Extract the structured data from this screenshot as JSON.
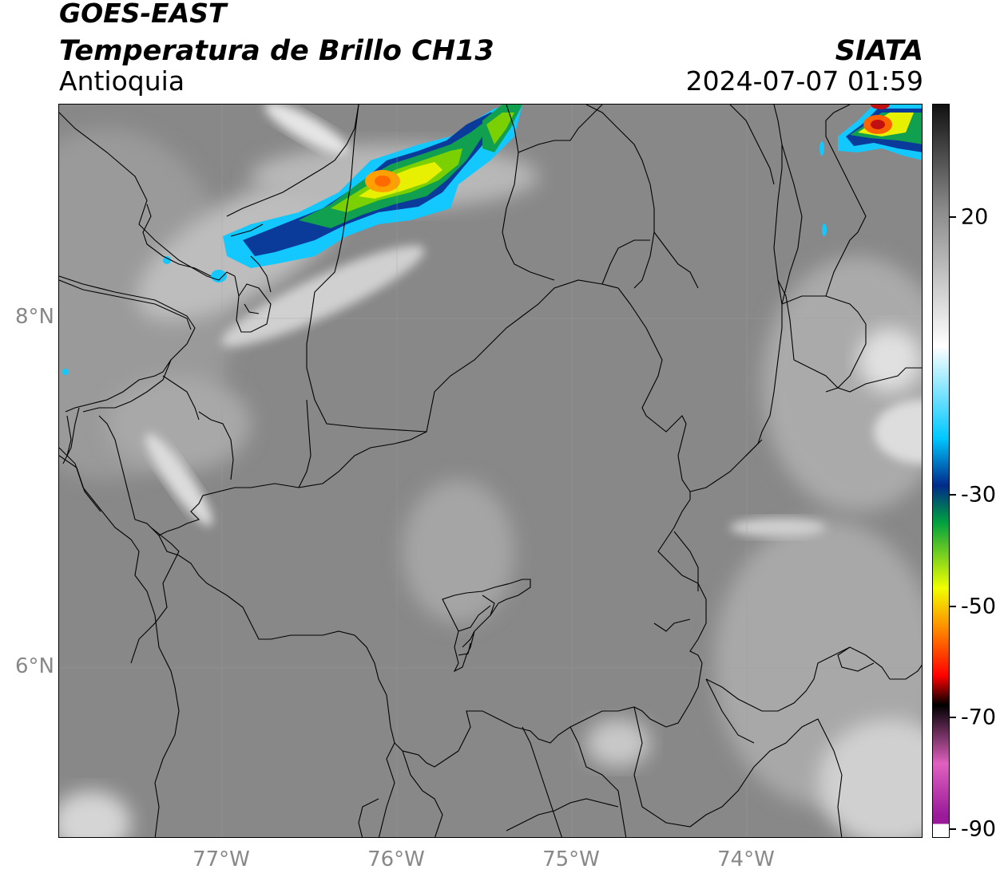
{
  "header": {
    "title_line1": "GOES-EAST",
    "title_line2": "Temperatura de Brillo CH13",
    "region": "Antioquia",
    "agency": "SIATA",
    "datetime": "2024-07-07 01:59"
  },
  "axes": {
    "lat_labels": [
      "8°N",
      "6°N"
    ],
    "lon_labels": [
      "77°W",
      "76°W",
      "75°W",
      "74°W"
    ],
    "label_color": "#888888"
  },
  "colorbar": {
    "tick_labels": [
      "20",
      "-30",
      "-50",
      "-70",
      "-90"
    ],
    "scale_colors": [
      "#111111",
      "#888888",
      "#ffffff",
      "#00c8ff",
      "#002a8a",
      "#00a040",
      "#f0ff00",
      "#ff8000",
      "#ff0000",
      "#000000",
      "#e060c0",
      "#9a1a9a"
    ]
  },
  "colors": {
    "background": "#ffffff",
    "map_gray": "#8a8a8a",
    "boundary": "#000000"
  }
}
